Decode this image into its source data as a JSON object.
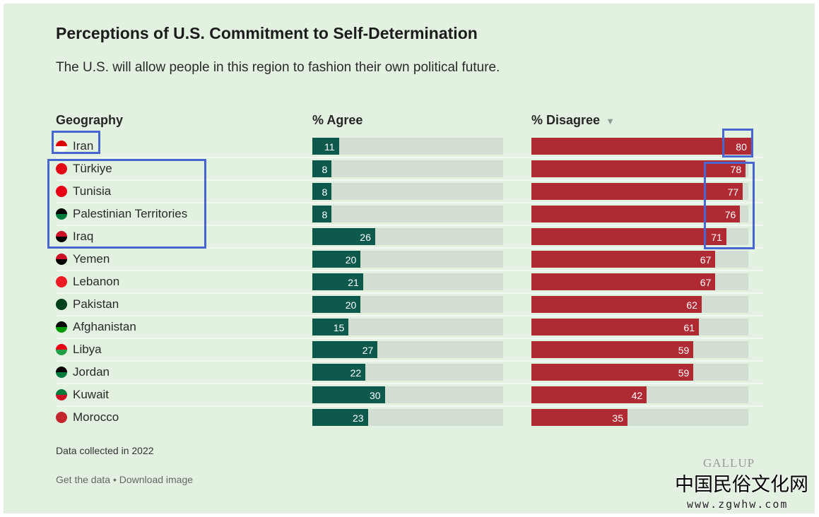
{
  "title": "Perceptions of U.S. Commitment to Self-Determination",
  "subtitle": "The U.S. will allow people in this region to fashion their own political future.",
  "columns": {
    "geography": "Geography",
    "agree": "% Agree",
    "disagree": "% Disagree",
    "sort_icon": "▼"
  },
  "colors": {
    "agree": "#0d5a4d",
    "disagree": "#b02a33",
    "track": "#d3ded2",
    "background": "#e3f1e1",
    "annotation": "#4866d0"
  },
  "chart_data": {
    "type": "bar",
    "orientation": "horizontal",
    "categories": [
      "Iran",
      "Türkiye",
      "Tunisia",
      "Palestinian Territories",
      "Iraq",
      "Yemen",
      "Lebanon",
      "Pakistan",
      "Afghanistan",
      "Libya",
      "Jordan",
      "Kuwait",
      "Morocco"
    ],
    "series": [
      {
        "name": "% Agree",
        "values": [
          11,
          8,
          8,
          8,
          26,
          20,
          21,
          20,
          15,
          27,
          22,
          30,
          23
        ]
      },
      {
        "name": "% Disagree",
        "values": [
          80,
          78,
          77,
          76,
          71,
          67,
          67,
          62,
          61,
          59,
          59,
          42,
          35
        ]
      }
    ],
    "sorted_by": "% Disagree descending"
  },
  "flags": [
    [
      "#da0000",
      "#ffffff"
    ],
    [
      "#e30a17",
      "#e30a17"
    ],
    [
      "#e70013",
      "#e70013"
    ],
    [
      "#000000",
      "#007a3d"
    ],
    [
      "#ce1126",
      "#000000"
    ],
    [
      "#ce1126",
      "#000000"
    ],
    [
      "#ed1c24",
      "#ed1c24"
    ],
    [
      "#01411c",
      "#01411c"
    ],
    [
      "#000000",
      "#009900"
    ],
    [
      "#e70013",
      "#239e46"
    ],
    [
      "#000000",
      "#007a3d"
    ],
    [
      "#007a3d",
      "#ce1126"
    ],
    [
      "#c1272d",
      "#c1272d"
    ]
  ],
  "footer": {
    "note": "Data collected in 2022",
    "get_data": "Get the data",
    "separator": " • ",
    "download": "Download image",
    "logo": "GALLUP"
  },
  "watermark": {
    "chinese": "中国民俗文化网",
    "url": "www.zgwhw.com"
  }
}
